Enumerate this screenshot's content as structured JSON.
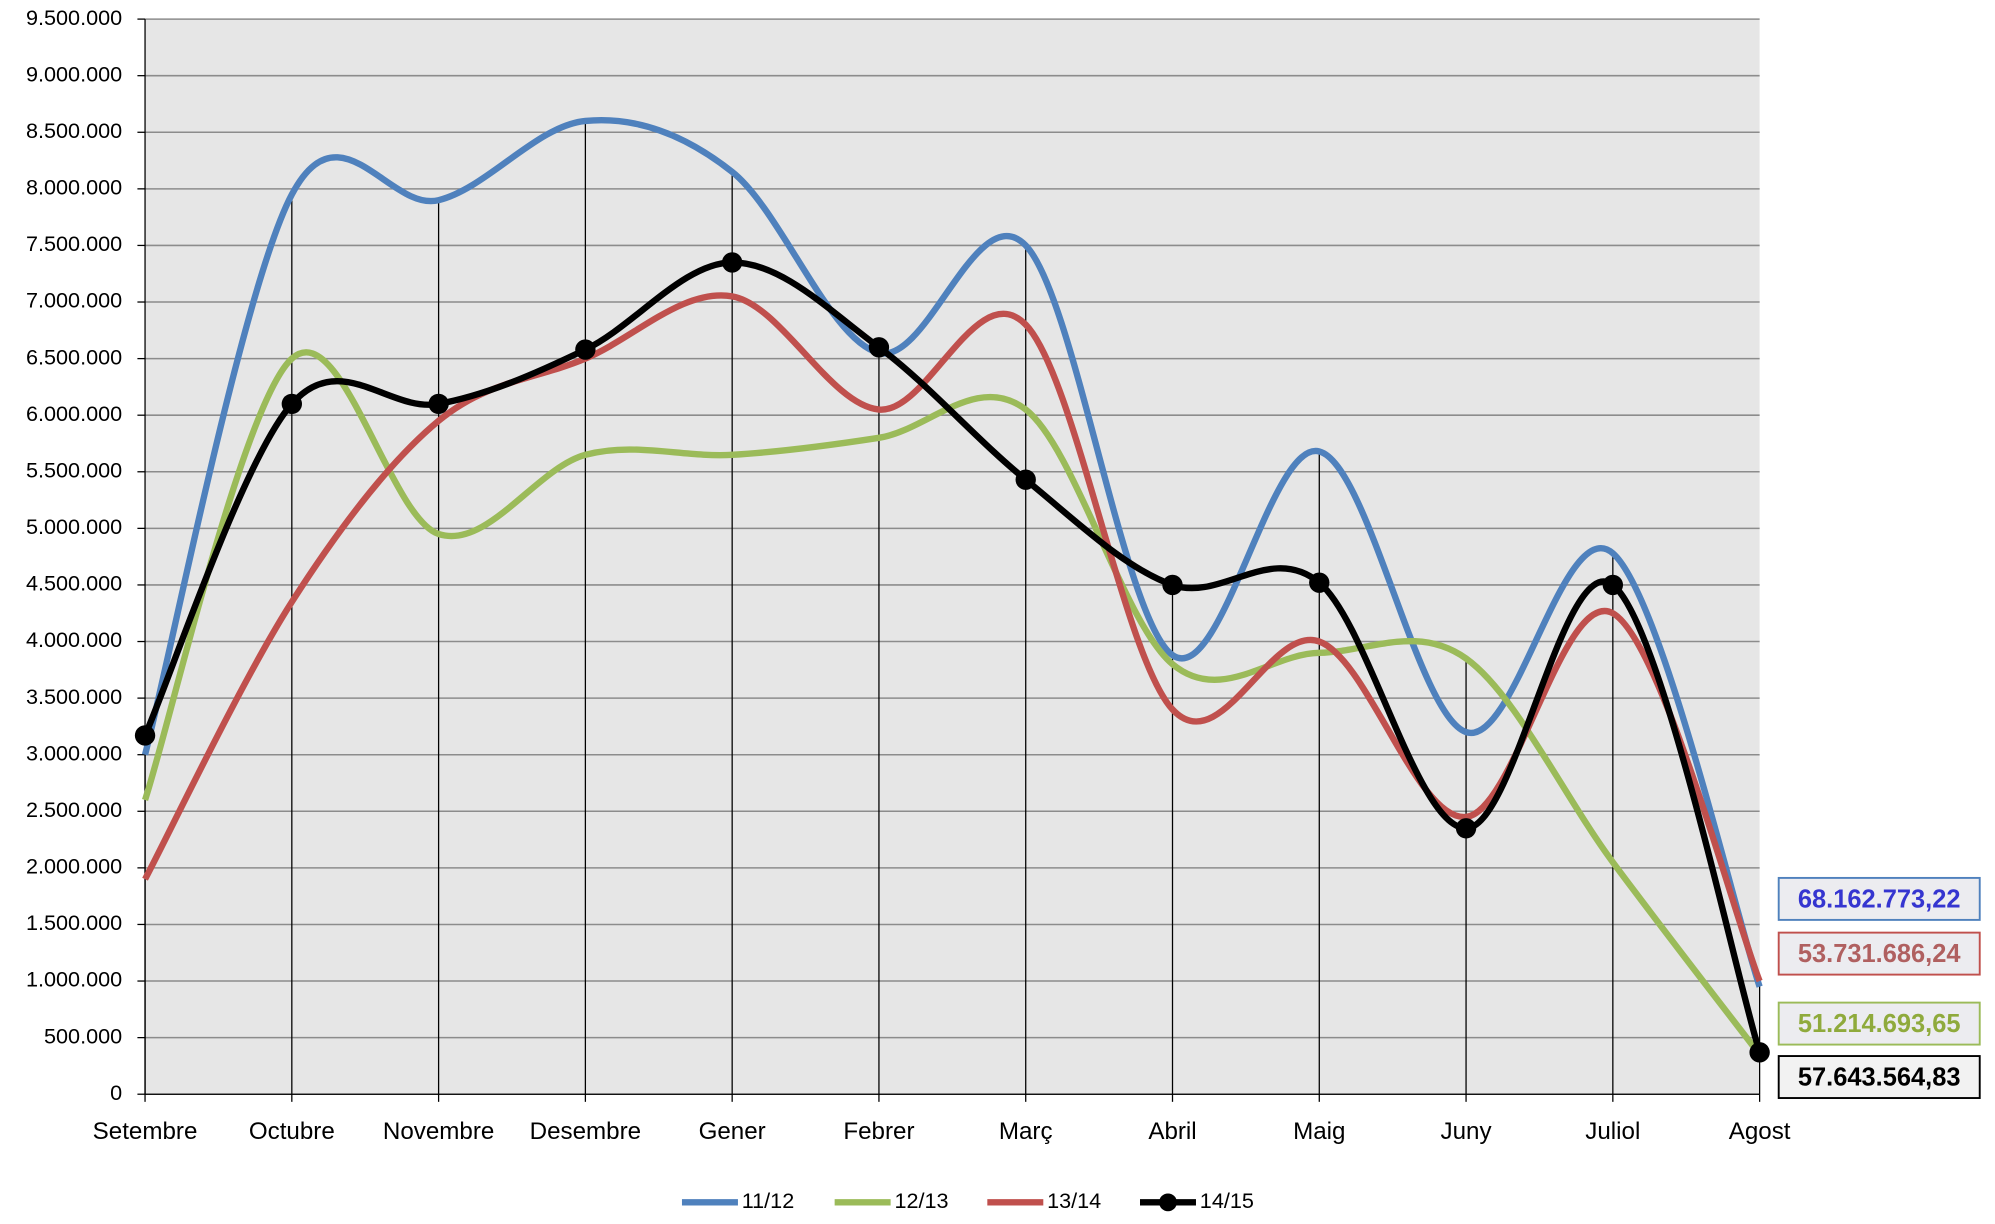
{
  "chart_data": {
    "type": "line",
    "categories": [
      "Setembre",
      "Octubre",
      "Novembre",
      "Desembre",
      "Gener",
      "Febrer",
      "Març",
      "Abril",
      "Maig",
      "Juny",
      "Juliol",
      "Agost"
    ],
    "series": [
      {
        "name": "11/12",
        "color": "#4f81bd",
        "label_color": "#3535d0",
        "total_label": "68.162.773,22",
        "values": [
          3000000,
          7950000,
          7900000,
          8600000,
          8150000,
          6550000,
          7500000,
          3880000,
          5680000,
          3200000,
          4780000,
          950000
        ]
      },
      {
        "name": "12/13",
        "color": "#9bbb59",
        "label_color": "#8faa3c",
        "total_label": "51.214.693,65",
        "values": [
          2600000,
          6500000,
          4950000,
          5650000,
          5650000,
          5800000,
          6050000,
          3800000,
          3900000,
          3850000,
          2050000,
          350000
        ]
      },
      {
        "name": "13/14",
        "color": "#c0504d",
        "label_color": "#b06060",
        "total_label": "53.731.686,24",
        "values": [
          1900000,
          4350000,
          5950000,
          6500000,
          7050000,
          6050000,
          6800000,
          3400000,
          4000000,
          2450000,
          4250000,
          1000000
        ]
      },
      {
        "name": "14/15",
        "color": "#000000",
        "label_color": "#000000",
        "total_label": "57.643.564,83",
        "markers": true,
        "values": [
          3170000,
          6100000,
          6100000,
          6580000,
          7350000,
          6600000,
          5430000,
          4500000,
          4520000,
          2350000,
          4500000,
          370000
        ]
      }
    ],
    "ylim": [
      0,
      9500000
    ],
    "yticks": [
      0,
      {
        "value": 500000,
        "label": "500.000"
      },
      {
        "value": 1000000,
        "label": "1.000.000"
      },
      {
        "value": 1500000,
        "label": "1.500.000"
      },
      {
        "value": 2000000,
        "label": "2.000.000"
      },
      {
        "value": 2500000,
        "label": "2.500.000"
      },
      {
        "value": 3000000,
        "label": "3.000.000"
      },
      {
        "value": 3500000,
        "label": "3.500.000"
      },
      {
        "value": 4000000,
        "label": "4.000.000"
      },
      {
        "value": 4500000,
        "label": "4.500.000"
      },
      {
        "value": 5000000,
        "label": "5.000.000"
      },
      {
        "value": 5500000,
        "label": "5.500.000"
      },
      {
        "value": 6000000,
        "label": "6.000.000"
      },
      {
        "value": 6500000,
        "label": "6.500.000"
      },
      {
        "value": 7000000,
        "label": "7.000.000"
      },
      {
        "value": 7500000,
        "label": "7.500.000"
      },
      {
        "value": 8000000,
        "label": "8.000.000"
      },
      {
        "value": 8500000,
        "label": "8.500.000"
      },
      {
        "value": 9000000,
        "label": "9.000.000"
      },
      {
        "value": 9500000,
        "label": "9.500.000"
      }
    ],
    "grid": true,
    "smooth": true,
    "drop_lines": true,
    "legend": "bottom"
  }
}
